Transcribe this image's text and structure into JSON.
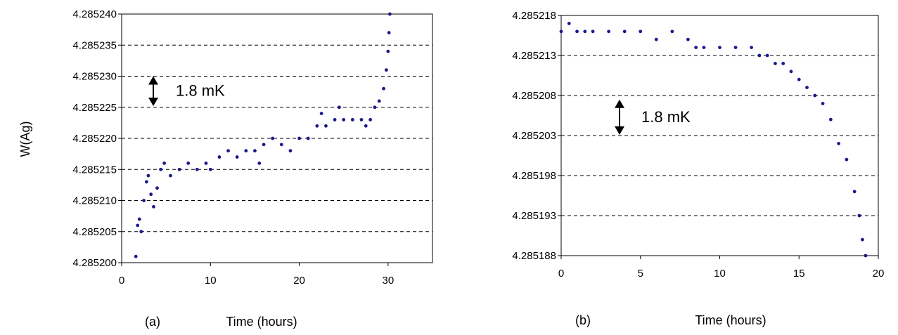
{
  "chart_data": [
    {
      "panel": "(a)",
      "type": "scatter",
      "xlabel": "Time (hours)",
      "ylabel": "W(Ag)",
      "xlim": [
        0,
        35
      ],
      "ylim": [
        4.2852,
        4.28524
      ],
      "xticks": [
        "0",
        "10",
        "20",
        "30"
      ],
      "yticks": [
        "4.285200",
        "4.285205",
        "4.285210",
        "4.285215",
        "4.285220",
        "4.285225",
        "4.285230",
        "4.285235",
        "4.285240"
      ],
      "grid": "horizontal dashed",
      "marker_color": "#1a1a8c",
      "annotation": {
        "text": "1.8 mK",
        "arrow_from": 4.2852252,
        "arrow_to": 4.28523
      },
      "series": [
        {
          "x": [
            1.6,
            1.8,
            2.0,
            2.2,
            2.5,
            2.8,
            3.0,
            3.3,
            3.6,
            4.0,
            4.4,
            4.8,
            5.5,
            6.5,
            7.5,
            8.5,
            9.5,
            10.0,
            11.0,
            12.0,
            13.0,
            14.0,
            15.0,
            15.5,
            16.0,
            17.0,
            18.0,
            19.0,
            20.0,
            21.0,
            22.0,
            22.5,
            23.0,
            24.0,
            24.5,
            25.0,
            26.0,
            27.0,
            27.5,
            28.0,
            28.5,
            29.0,
            29.5,
            29.8,
            30.0,
            30.1,
            30.2
          ],
          "y": [
            4.285201,
            4.285206,
            4.285207,
            4.285205,
            4.28521,
            4.285213,
            4.285214,
            4.285211,
            4.285209,
            4.285212,
            4.285215,
            4.285216,
            4.285214,
            4.285215,
            4.285216,
            4.285215,
            4.285216,
            4.285215,
            4.285217,
            4.285218,
            4.285217,
            4.285218,
            4.285218,
            4.285216,
            4.285219,
            4.28522,
            4.285219,
            4.285218,
            4.28522,
            4.28522,
            4.285222,
            4.285224,
            4.285222,
            4.285223,
            4.285225,
            4.285223,
            4.285223,
            4.285223,
            4.285222,
            4.285223,
            4.285225,
            4.285226,
            4.285228,
            4.285231,
            4.285234,
            4.285237,
            4.28524
          ]
        }
      ]
    },
    {
      "panel": "(b)",
      "type": "scatter",
      "xlabel": "Time (hours)",
      "ylabel": "",
      "xlim": [
        0,
        20
      ],
      "ylim": [
        4.285188,
        4.285218
      ],
      "xticks": [
        "0",
        "5",
        "10",
        "15",
        "20"
      ],
      "yticks": [
        "4.285188",
        "4.285193",
        "4.285198",
        "4.285203",
        "4.285208",
        "4.285213",
        "4.285218"
      ],
      "grid": "horizontal dashed",
      "marker_color": "#1a1a8c",
      "annotation": {
        "text": "1.8 mK",
        "arrow_from": 4.2852031,
        "arrow_to": 4.2852075
      },
      "series": [
        {
          "x": [
            0.0,
            0.5,
            1.0,
            1.5,
            2.0,
            3.0,
            4.0,
            5.0,
            6.0,
            7.0,
            8.0,
            8.5,
            9.0,
            10.0,
            11.0,
            12.0,
            12.5,
            13.0,
            13.5,
            14.0,
            14.5,
            15.0,
            15.5,
            16.0,
            16.5,
            17.0,
            17.5,
            18.0,
            18.5,
            18.8,
            19.0,
            19.2
          ],
          "y": [
            4.285216,
            4.285217,
            4.285216,
            4.285216,
            4.285216,
            4.285216,
            4.285216,
            4.285216,
            4.285215,
            4.285216,
            4.285215,
            4.285214,
            4.285214,
            4.285214,
            4.285214,
            4.285214,
            4.285213,
            4.285213,
            4.285212,
            4.285212,
            4.285211,
            4.28521,
            4.285209,
            4.285208,
            4.285207,
            4.285205,
            4.285202,
            4.2852,
            4.285196,
            4.285193,
            4.28519,
            4.285188
          ]
        }
      ]
    }
  ]
}
